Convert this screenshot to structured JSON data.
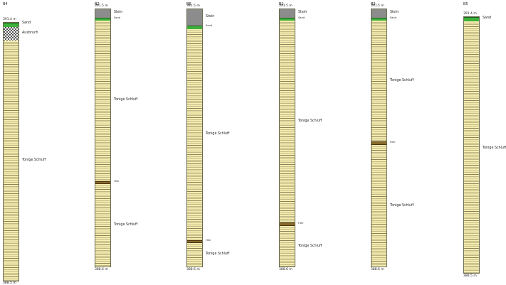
{
  "colors": {
    "schluff": "#f5ecb0",
    "sand": "#3cb23a",
    "stein": "#8c8c8c",
    "hmr": "#8a6a2a",
    "border": "#6a6a50"
  },
  "boreholes": [
    {
      "name": "B4",
      "top_elev": "391.4 m",
      "bottom_elev": "388.5 m",
      "layers": [
        {
          "material": "Sand",
          "label": "Sand"
        },
        {
          "material": "Ausbruch",
          "label": "Ausbruch"
        },
        {
          "material": "Tonige Schluff",
          "label": "Tonige Schluff"
        }
      ]
    },
    {
      "name": "B2",
      "top_elev": "391.5 m",
      "bottom_elev": "388.6 m",
      "layers": [
        {
          "material": "Stein",
          "label": "Stein"
        },
        {
          "material": "Sand",
          "label": "Sand"
        },
        {
          "material": "Tonige Schluff",
          "label": "Tonige Schluff"
        },
        {
          "material": "Hmr",
          "label": "Hmr"
        },
        {
          "material": "Tonige Schluff",
          "label": "Tonige Schluff"
        }
      ]
    },
    {
      "name": "B6",
      "top_elev": "391.5 m",
      "bottom_elev": "388.6 m",
      "layers": [
        {
          "material": "Stein",
          "label": "Stein"
        },
        {
          "material": "Sand",
          "label": "Sand"
        },
        {
          "material": "Tonige Schluff",
          "label": "Tonige Schluff"
        },
        {
          "material": "Hmr",
          "label": "Hmr"
        },
        {
          "material": "Tonige Schluff",
          "label": "Tonige Schluff"
        }
      ]
    },
    {
      "name": "B1",
      "top_elev": "391.5 m",
      "bottom_elev": "388.6 m",
      "layers": [
        {
          "material": "Stein",
          "label": "Stein"
        },
        {
          "material": "Sand",
          "label": "Sand"
        },
        {
          "material": "Tonige Schluff",
          "label": "Tonige Schluff"
        },
        {
          "material": "Hmr",
          "label": "Hmr"
        },
        {
          "material": "Tonige Schluff",
          "label": "Tonige Schluff"
        }
      ]
    },
    {
      "name": "B3",
      "top_elev": "391.5 m",
      "bottom_elev": "388.6 m",
      "layers": [
        {
          "material": "Stein",
          "label": "Stein"
        },
        {
          "material": "Sand",
          "label": "Sand"
        },
        {
          "material": "Tonige Schluff",
          "label": "Tonige Schluff"
        },
        {
          "material": "Hmr",
          "label": "Hmr"
        },
        {
          "material": "Tonige Schluff",
          "label": "Tonige Schluff"
        }
      ]
    },
    {
      "name": "B5",
      "top_elev": "391.4 m",
      "bottom_elev": "388.5 m",
      "layers": [
        {
          "material": "Sand",
          "label": "Sand"
        },
        {
          "material": "Tonige Schluff",
          "label": "Tonige Schluff"
        }
      ]
    }
  ]
}
